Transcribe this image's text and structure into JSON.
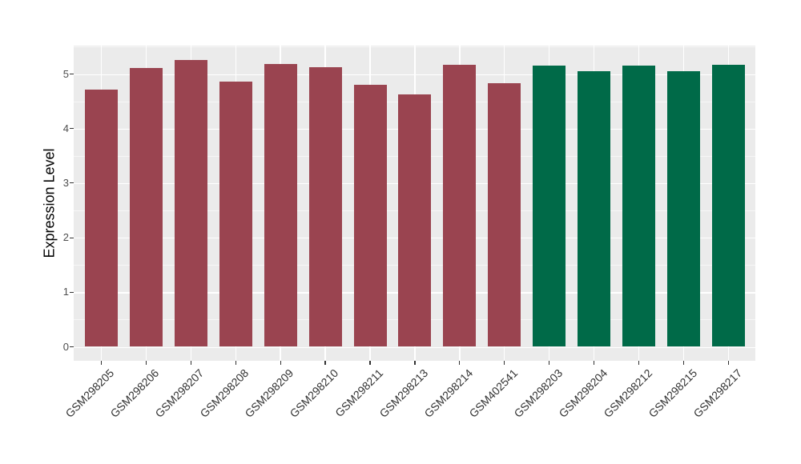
{
  "chart_data": {
    "type": "bar",
    "title": "",
    "xlabel": "",
    "ylabel": "Expression Level",
    "ylim": [
      0,
      5.55
    ],
    "y_ticks": [
      0,
      1,
      2,
      3,
      4,
      5
    ],
    "grid": "white major+minor horizontal lines and major vertical lines on gray panel",
    "legend_position": "none",
    "categories": [
      "GSM298205",
      "GSM298206",
      "GSM298207",
      "GSM298208",
      "GSM298209",
      "GSM298210",
      "GSM298211",
      "GSM298213",
      "GSM298214",
      "GSM402541",
      "GSM298203",
      "GSM298204",
      "GSM298212",
      "GSM298215",
      "GSM298217"
    ],
    "values": [
      4.72,
      5.11,
      5.26,
      4.86,
      5.18,
      5.12,
      4.8,
      4.62,
      5.17,
      4.83,
      5.15,
      5.05,
      5.15,
      5.05,
      5.17
    ],
    "groups": [
      "group1",
      "group1",
      "group1",
      "group1",
      "group1",
      "group1",
      "group1",
      "group1",
      "group1",
      "group1",
      "group2",
      "group2",
      "group2",
      "group2",
      "group2"
    ],
    "palette": {
      "group1": "#9A4450",
      "group2": "#006A48"
    }
  },
  "colors": {
    "figure_background": "#FFFFFF",
    "panel_background": "#EBEBEB",
    "grid": "#FFFFFF",
    "bar_maroon": "#9A4450",
    "bar_green": "#006A48",
    "axis_tick_text": "#4D4D4D",
    "x_tick_text": "#333333",
    "axis_title_text": "#000000",
    "tick_mark": "#333333"
  }
}
